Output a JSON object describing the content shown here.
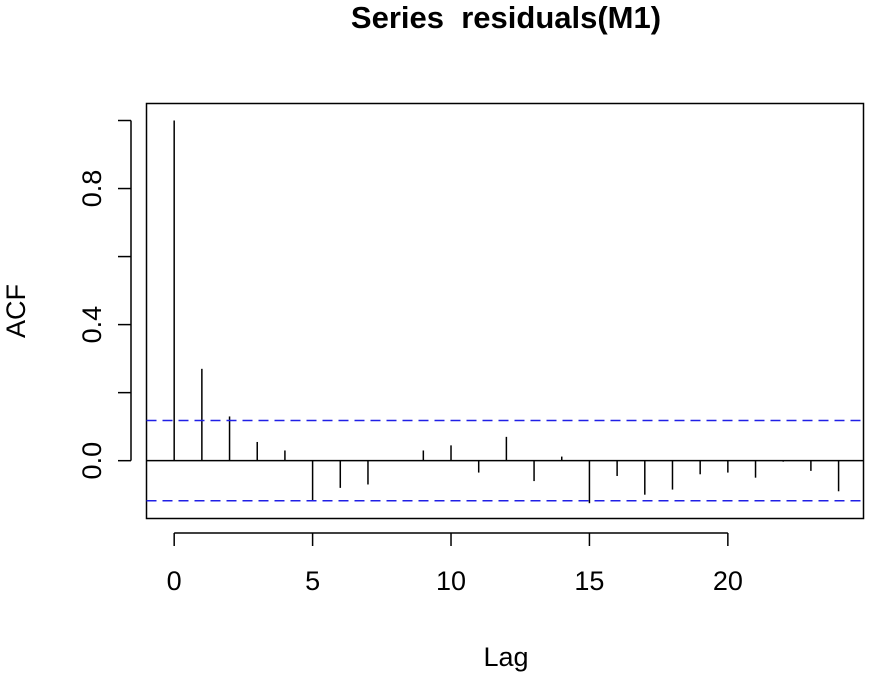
{
  "chart_data": {
    "type": "bar",
    "title": "Series  residuals(M1)",
    "xlabel": "Lag",
    "ylabel": "ACF",
    "x_ticks": [
      0,
      5,
      10,
      15,
      20
    ],
    "x_tick_labels": [
      "0",
      "5",
      "10",
      "15",
      "20"
    ],
    "y_ticks": [
      0.0,
      0.4,
      0.8
    ],
    "y_tick_labels": [
      "0.0",
      "0.4",
      "0.8"
    ],
    "xlim": [
      -1,
      24.9
    ],
    "ylim": [
      -0.17,
      1.05
    ],
    "grid": false,
    "legend": "none",
    "ci_bound": 0.118,
    "lags": [
      0,
      1,
      2,
      3,
      4,
      5,
      6,
      7,
      8,
      9,
      10,
      11,
      12,
      13,
      14,
      15,
      16,
      17,
      18,
      19,
      20,
      21,
      22,
      23,
      24
    ],
    "values": [
      1.0,
      0.27,
      0.13,
      0.055,
      0.03,
      -0.12,
      -0.08,
      -0.07,
      0.002,
      0.03,
      0.045,
      -0.035,
      0.07,
      -0.06,
      0.012,
      -0.125,
      -0.045,
      -0.1,
      -0.085,
      -0.04,
      -0.035,
      -0.05,
      -0.003,
      -0.03,
      -0.09
    ],
    "colors": {
      "bars": "#000000",
      "ci_line": "#1f1fe6",
      "axes": "#000000"
    }
  }
}
